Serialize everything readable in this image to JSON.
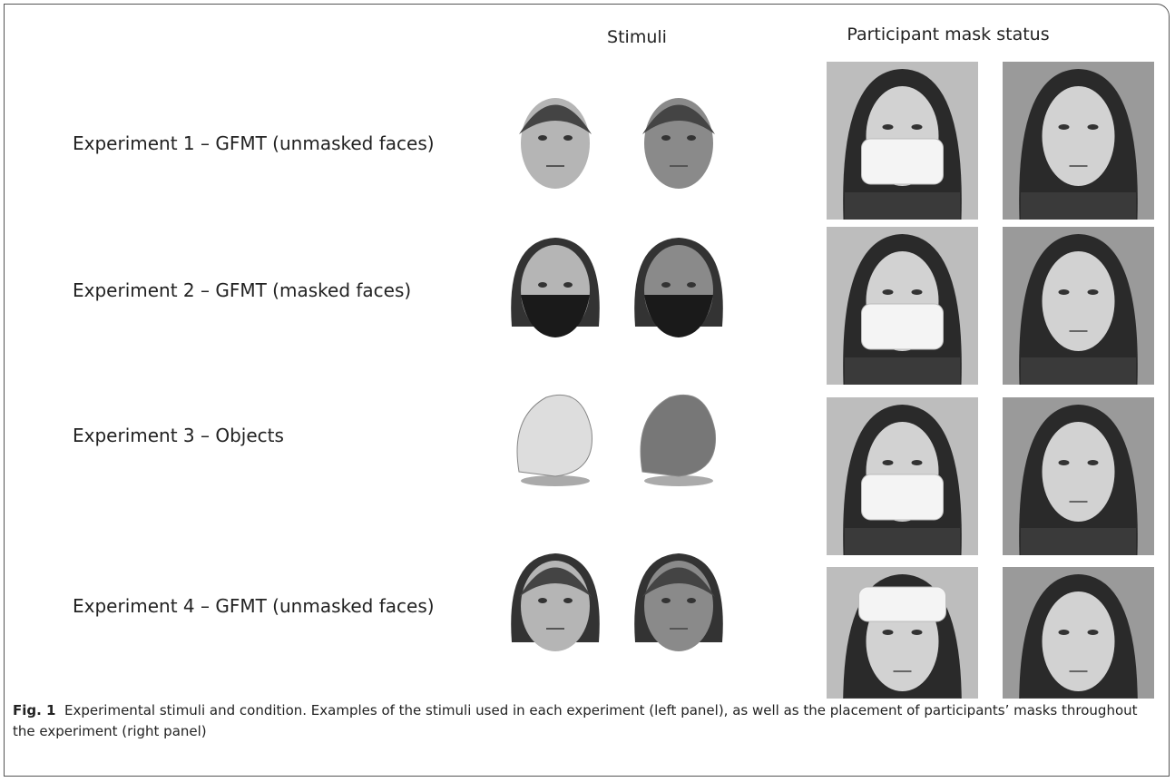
{
  "header": {
    "stimuli": "Stimuli",
    "participant": "Participant mask status"
  },
  "rows": [
    {
      "label": "Experiment 1 – GFMT (unmasked faces)"
    },
    {
      "label": "Experiment 2 – GFMT (masked faces)"
    },
    {
      "label": "Experiment 3 – Objects"
    },
    {
      "label": "Experiment 4 – GFMT (unmasked faces)"
    }
  ],
  "caption": {
    "label": "Fig. 1",
    "text": "Experimental stimuli and condition. Examples of the stimuli used in each experiment (left panel), as well as the placement of participants’ masks throughout the experiment (right panel)"
  }
}
